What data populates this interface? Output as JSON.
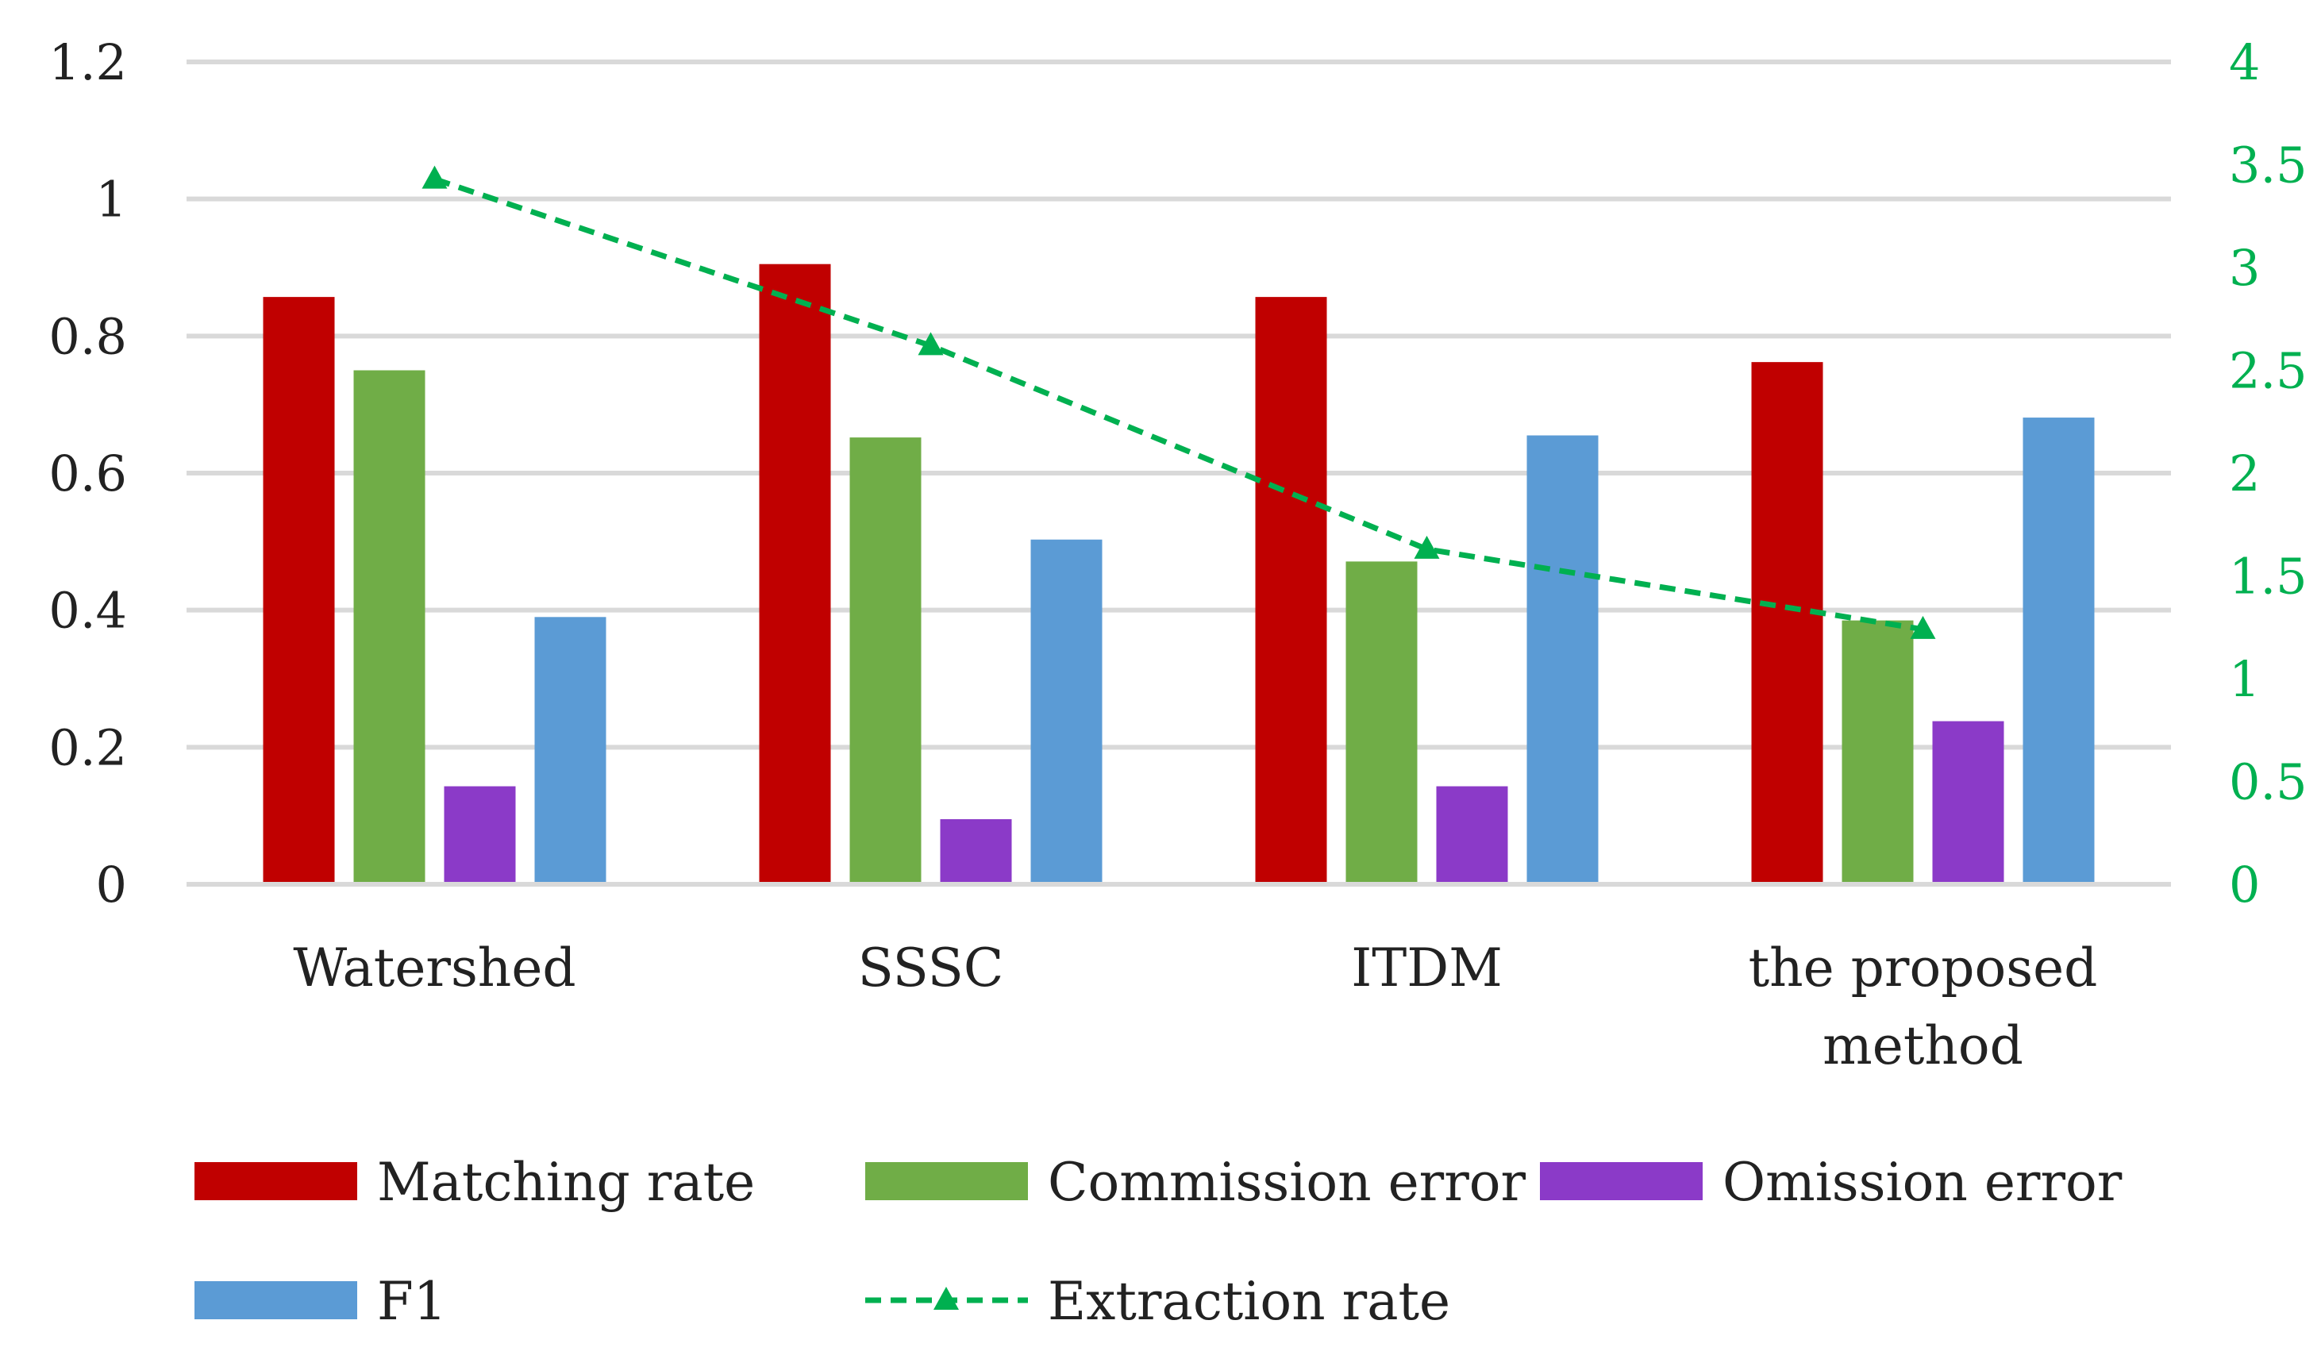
{
  "chart_data": {
    "type": "bar",
    "categories": [
      "Watershed",
      "SSSC",
      "ITDM",
      "the proposed method"
    ],
    "category_lines": [
      [
        "Watershed"
      ],
      [
        "SSSC"
      ],
      [
        "ITDM"
      ],
      [
        "the proposed",
        "method"
      ]
    ],
    "series": [
      {
        "name": "Matching rate",
        "type": "bar",
        "axis": "left",
        "color": "#C00000",
        "values": [
          0.857,
          0.905,
          0.857,
          0.762
        ]
      },
      {
        "name": "Commission error",
        "type": "bar",
        "axis": "left",
        "color": "#70AD47",
        "values": [
          0.75,
          0.652,
          0.471,
          0.385
        ]
      },
      {
        "name": "Omission error",
        "type": "bar",
        "axis": "left",
        "color": "#8B3AC8",
        "values": [
          0.143,
          0.095,
          0.143,
          0.238
        ]
      },
      {
        "name": "F1",
        "type": "bar",
        "axis": "left",
        "color": "#5B9BD5",
        "values": [
          0.39,
          0.503,
          0.655,
          0.681
        ]
      },
      {
        "name": "Extraction rate",
        "type": "line",
        "axis": "right",
        "color": "#00B050",
        "line_style": "dashed",
        "marker": "triangle",
        "values": [
          3.43,
          2.62,
          1.63,
          1.24
        ]
      }
    ],
    "y_left": {
      "ylim": [
        0,
        1.2
      ],
      "ticks": [
        "0",
        "0.2",
        "0.4",
        "0.6",
        "0.8",
        "1",
        "1.2"
      ],
      "tick_values": [
        0,
        0.2,
        0.4,
        0.6,
        0.8,
        1.0,
        1.2
      ]
    },
    "y_right": {
      "ylim": [
        0,
        4
      ],
      "ticks": [
        "0",
        "0.5",
        "1",
        "1.5",
        "2",
        "2.5",
        "3",
        "3.5",
        "4"
      ],
      "tick_values": [
        0,
        0.5,
        1,
        1.5,
        2,
        2.5,
        3,
        3.5,
        4
      ],
      "color": "#00B050"
    },
    "grid": true,
    "legend_position": "bottom",
    "title": "",
    "xlabel": "",
    "ylabel": ""
  }
}
